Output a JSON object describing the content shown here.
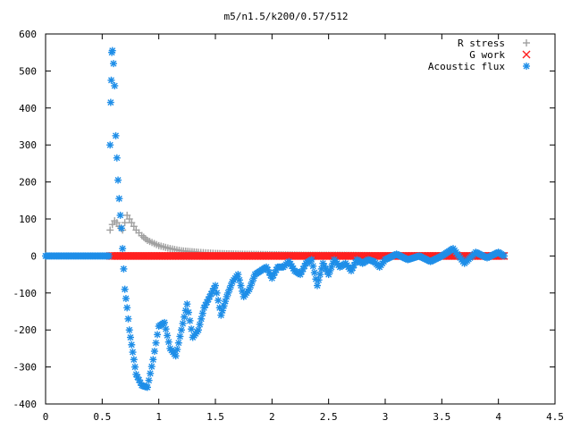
{
  "chart_data": {
    "type": "scatter",
    "title": "m5/n1.5/k200/0.57/512",
    "xlabel": "",
    "ylabel": "",
    "xlim": [
      0,
      4.5
    ],
    "ylim": [
      -400,
      600
    ],
    "x_ticks": [
      "0",
      "0.5",
      "1",
      "1.5",
      "2",
      "2.5",
      "3",
      "3.5",
      "4",
      "4.5"
    ],
    "y_ticks": [
      "-400",
      "-300",
      "-200",
      "-100",
      "0",
      "100",
      "200",
      "300",
      "400",
      "500",
      "600"
    ],
    "grid": false,
    "legend_position": "top-right",
    "series": [
      {
        "name": "R stress",
        "marker": "plus",
        "color": "#a0a0a0",
        "x": [
          0.57,
          0.59,
          0.61,
          0.63,
          0.65,
          0.68,
          0.72,
          0.76,
          0.8,
          0.85,
          0.9,
          1.0,
          1.1,
          1.2,
          1.35,
          1.5,
          1.7,
          1.9,
          2.1,
          2.3,
          2.6,
          2.9,
          3.2,
          3.5,
          3.8,
          4.05
        ],
        "y": [
          70,
          85,
          95,
          90,
          80,
          70,
          110,
          90,
          70,
          55,
          42,
          28,
          20,
          14,
          10,
          7,
          5,
          4,
          3,
          2,
          2,
          1,
          1,
          1,
          0,
          0
        ]
      },
      {
        "name": "G work",
        "marker": "x",
        "color": "#ff2020",
        "x": [
          0.57,
          1.0,
          1.5,
          2.0,
          2.5,
          3.0,
          3.5,
          4.05
        ],
        "y": [
          0,
          0,
          0,
          0,
          0,
          0,
          0,
          0
        ]
      },
      {
        "name": "Acoustic flux",
        "marker": "star",
        "color": "#1e8ee8",
        "x": [
          0.0,
          0.1,
          0.2,
          0.3,
          0.4,
          0.5,
          0.56,
          0.57,
          0.575,
          0.58,
          0.585,
          0.59,
          0.6,
          0.61,
          0.62,
          0.63,
          0.64,
          0.65,
          0.66,
          0.67,
          0.68,
          0.7,
          0.72,
          0.74,
          0.77,
          0.8,
          0.85,
          0.9,
          0.95,
          1.0,
          1.05,
          1.1,
          1.15,
          1.2,
          1.25,
          1.3,
          1.35,
          1.4,
          1.45,
          1.5,
          1.55,
          1.6,
          1.65,
          1.7,
          1.75,
          1.8,
          1.85,
          1.9,
          1.95,
          2.0,
          2.05,
          2.1,
          2.15,
          2.2,
          2.25,
          2.3,
          2.35,
          2.4,
          2.45,
          2.5,
          2.55,
          2.6,
          2.65,
          2.7,
          2.75,
          2.8,
          2.85,
          2.9,
          2.95,
          3.0,
          3.1,
          3.2,
          3.3,
          3.4,
          3.5,
          3.6,
          3.7,
          3.8,
          3.9,
          4.0,
          4.05
        ],
        "y": [
          0,
          0,
          0,
          0,
          0,
          0,
          0,
          300,
          415,
          475,
          550,
          555,
          520,
          460,
          325,
          265,
          205,
          155,
          110,
          75,
          20,
          -90,
          -140,
          -200,
          -260,
          -320,
          -350,
          -355,
          -280,
          -190,
          -180,
          -250,
          -270,
          -200,
          -130,
          -220,
          -200,
          -140,
          -110,
          -80,
          -160,
          -110,
          -70,
          -50,
          -110,
          -90,
          -50,
          -40,
          -30,
          -60,
          -30,
          -30,
          -15,
          -40,
          -50,
          -20,
          -10,
          -80,
          -20,
          -50,
          -10,
          -30,
          -20,
          -40,
          -10,
          -20,
          -10,
          -15,
          -30,
          -10,
          5,
          -10,
          0,
          -15,
          0,
          20,
          -20,
          10,
          -5,
          10,
          0
        ]
      }
    ]
  }
}
